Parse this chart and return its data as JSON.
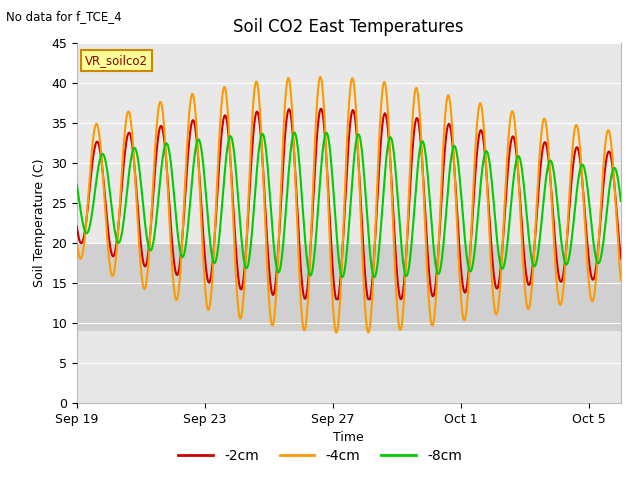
{
  "title": "Soil CO2 East Temperatures",
  "no_data_label": "No data for f_TCE_4",
  "sensor_label": "VR_soilco2",
  "xlabel": "Time",
  "ylabel": "Soil Temperature (C)",
  "ylim": [
    0,
    45
  ],
  "yticks": [
    0,
    5,
    10,
    15,
    20,
    25,
    30,
    35,
    40,
    45
  ],
  "x_tick_labels": [
    "Sep 19",
    "Sep 23",
    "Sep 27",
    "Oct 1",
    "Oct 5"
  ],
  "x_tick_positions": [
    0,
    4,
    8,
    12,
    16
  ],
  "background_color": "#ffffff",
  "plot_bg_color": "#e8e8e8",
  "band_color": "#d0d0d0",
  "band_ymin": 9,
  "band_ymax": 20,
  "colors": {
    "2cm": "#cc0000",
    "4cm": "#ff9900",
    "8cm": "#00cc00"
  },
  "legend_entries": [
    "-2cm",
    "-4cm",
    "-8cm"
  ],
  "line_width": 1.5,
  "base_temp": 26.0,
  "amp_4cm_max": 16.0,
  "amp_2cm_max": 12.0,
  "amp_8cm_max": 9.0,
  "phase_2cm": 0.38,
  "phase_4cm": 0.36,
  "phase_8cm": 0.55,
  "amp_grow_peak_day": 8.0,
  "n_days": 17,
  "n_points": 1020
}
